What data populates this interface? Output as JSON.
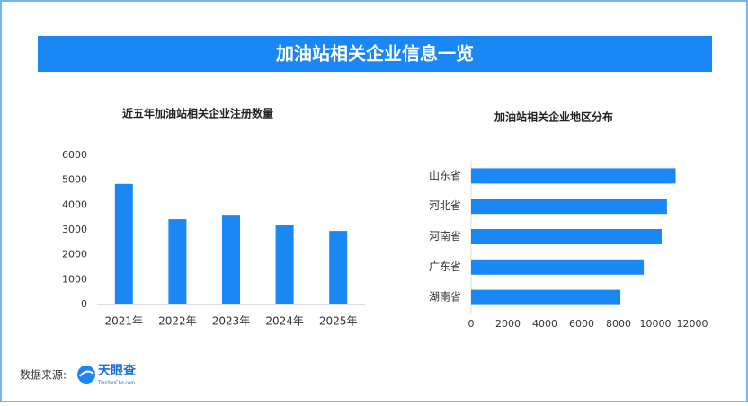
{
  "header": {
    "title": "加油站相关企业信息一览"
  },
  "chart_data": [
    {
      "type": "bar",
      "orientation": "vertical",
      "title": "近五年加油站相关企业注册数量",
      "categories": [
        "2021年",
        "2022年",
        "2023年",
        "2024年",
        "2025年"
      ],
      "values": [
        4850,
        3430,
        3610,
        3180,
        2960
      ],
      "color": "#1a87f5",
      "ylim": [
        0,
        6000
      ],
      "yticks": [
        0,
        1000,
        2000,
        3000,
        4000,
        5000,
        6000
      ]
    },
    {
      "type": "bar",
      "orientation": "horizontal",
      "title": "加油站相关企业地区分布",
      "categories": [
        "山东省",
        "河北省",
        "河南省",
        "广东省",
        "湖南省"
      ],
      "values": [
        11100,
        10630,
        10340,
        9370,
        8100
      ],
      "color": "#1a87f5",
      "xlim": [
        0,
        12000
      ],
      "xticks": [
        0,
        2000,
        4000,
        6000,
        8000,
        10000,
        12000
      ]
    }
  ],
  "footer": {
    "source_label": "数据来源:",
    "logo": "天眼查",
    "logo_sub": "TianYanCha.com"
  }
}
